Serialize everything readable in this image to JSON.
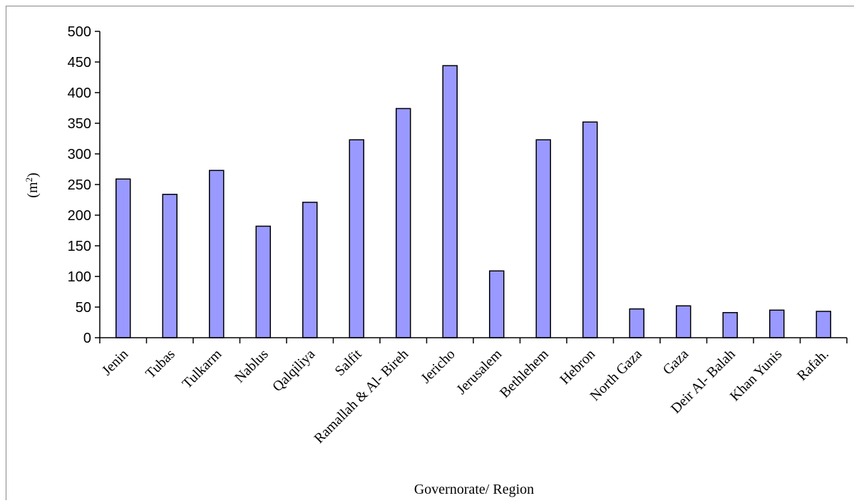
{
  "chart_data": {
    "type": "bar",
    "title": "",
    "xlabel": "Governorate/ Region",
    "ylabel": "(m",
    "ylabel_sup": "2",
    "ylabel_close": ")",
    "ylim": [
      0,
      500
    ],
    "yticks": [
      "0",
      "50",
      "100",
      "150",
      "200",
      "250",
      "300",
      "350",
      "400",
      "450",
      "500"
    ],
    "categories": [
      "Jenin",
      "Tubas",
      "Tulkarm",
      "Nablus",
      "Qalqiliya",
      "Salfit",
      "Ramallah & Al- Bireh",
      "Jericho",
      "Jerusalem",
      "Bethlehem",
      "Hebron",
      "North Gaza",
      "Gaza",
      "Deir Al- Balah",
      "Khan Yunis",
      "Rafah."
    ],
    "values": [
      259,
      234,
      273,
      182,
      221,
      323,
      374,
      444,
      109,
      323,
      352,
      47,
      52,
      41,
      45,
      43
    ],
    "bar_color": "#9999ff",
    "bar_stroke": "#000000",
    "grid": false,
    "legend": "none"
  }
}
